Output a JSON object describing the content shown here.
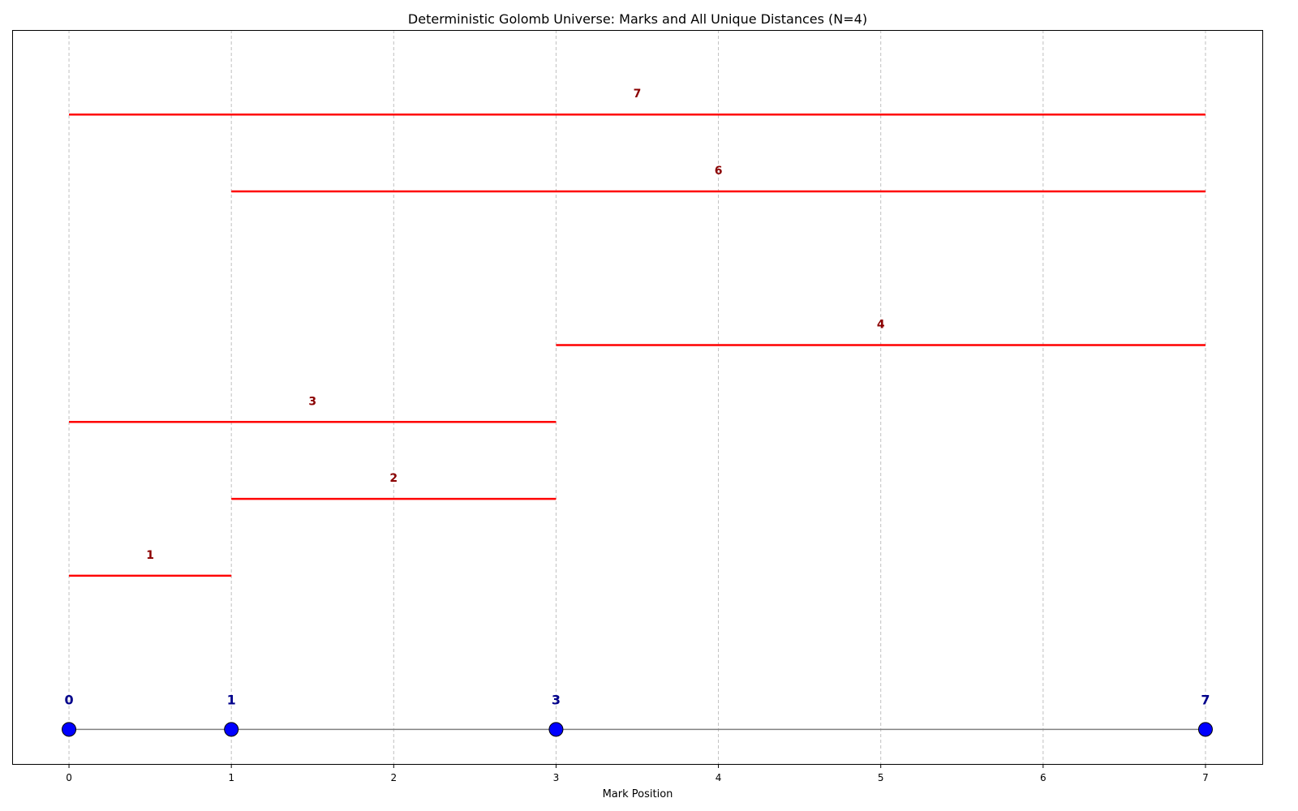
{
  "chart_data": {
    "type": "line",
    "title": "Deterministic Golomb Universe: Marks and All Unique Distances (N=4)",
    "xlabel": "Mark Position",
    "ylabel": "",
    "xlim": [
      -0.35,
      7.35
    ],
    "ylim": [
      -0.45,
      9.1
    ],
    "x_ticks": [
      0,
      1,
      2,
      3,
      4,
      5,
      6,
      7
    ],
    "grid": "vertical dashed",
    "marks": [
      0,
      1,
      3,
      7
    ],
    "baseline_y": 0,
    "distances": [
      {
        "start": 0,
        "end": 1,
        "value": 1,
        "level": 2
      },
      {
        "start": 1,
        "end": 3,
        "value": 2,
        "level": 3
      },
      {
        "start": 0,
        "end": 3,
        "value": 3,
        "level": 4
      },
      {
        "start": 3,
        "end": 7,
        "value": 4,
        "level": 5
      },
      {
        "start": 1,
        "end": 7,
        "value": 6,
        "level": 7
      },
      {
        "start": 0,
        "end": 7,
        "value": 7,
        "level": 8
      }
    ],
    "colors": {
      "distance_line": "#ff0000",
      "distance_label": "#8b0000",
      "mark_fill": "#0000ff",
      "mark_edge": "#000000",
      "mark_label": "#00008b",
      "baseline": "#808080",
      "grid": "#c0c0c0"
    }
  }
}
